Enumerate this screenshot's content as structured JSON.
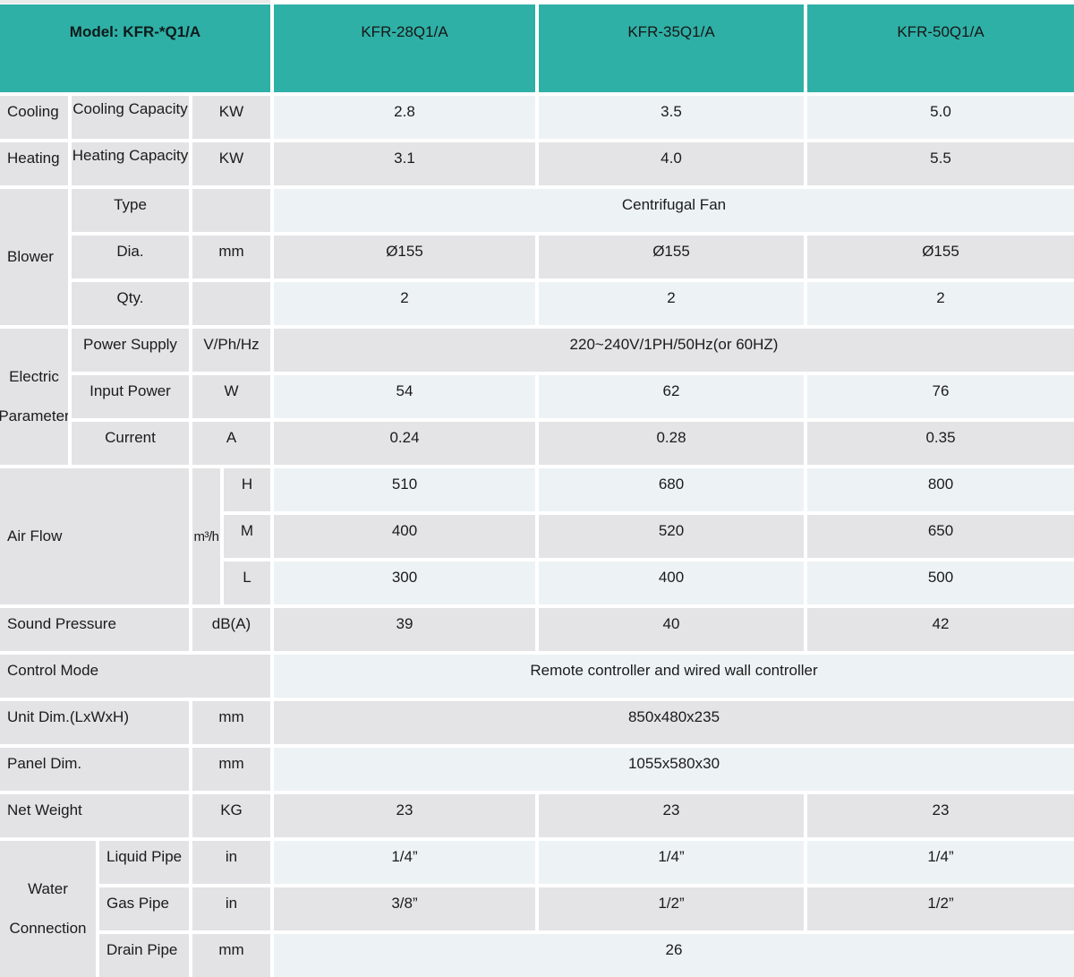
{
  "colors": {
    "header_teal": "#2FB0A6",
    "row_light": "#EDF2F5",
    "row_gray": "#E4E3E5",
    "label_gray": "#E3E3E5"
  },
  "header": {
    "model_label": "Model: KFR-*Q1/A",
    "columns": [
      "KFR-28Q1/A",
      "KFR-35Q1/A",
      "KFR-50Q1/A"
    ]
  },
  "rows": {
    "cooling": {
      "group": "Cooling",
      "label": "Cooling Capacity",
      "unit": "KW",
      "values": [
        "2.8",
        "3.5",
        "5.0"
      ]
    },
    "heating": {
      "group": "Heating",
      "label": "Heating Capacity",
      "unit": "KW",
      "values": [
        "3.1",
        "4.0",
        "5.5"
      ]
    },
    "blower": {
      "group": "Blower",
      "type": {
        "label": "Type",
        "unit": "",
        "span": "Centrifugal Fan"
      },
      "dia": {
        "label": "Dia.",
        "unit": "mm",
        "values": [
          "Ø155",
          "Ø155",
          "Ø155"
        ]
      },
      "qty": {
        "label": "Qty.",
        "unit": "",
        "values": [
          "2",
          "2",
          "2"
        ]
      }
    },
    "electric": {
      "group": "Electric Parameter",
      "power_supply": {
        "label": "Power Supply",
        "unit": "V/Ph/Hz",
        "span": "220~240V/1PH/50Hz(or 60HZ)"
      },
      "input_power": {
        "label": "Input Power",
        "unit": "W",
        "values": [
          "54",
          "62",
          "76"
        ]
      },
      "current": {
        "label": "Current",
        "unit": "A",
        "values": [
          "0.24",
          "0.28",
          "0.35"
        ]
      }
    },
    "airflow": {
      "group": "Air Flow",
      "unit": "m³/h",
      "h": {
        "label": "H",
        "values": [
          "510",
          "680",
          "800"
        ]
      },
      "m": {
        "label": "M",
        "values": [
          "400",
          "520",
          "650"
        ]
      },
      "l": {
        "label": "L",
        "values": [
          "300",
          "400",
          "500"
        ]
      }
    },
    "sound": {
      "group": "Sound Pressure",
      "unit": "dB(A)",
      "values": [
        "39",
        "40",
        "42"
      ]
    },
    "control": {
      "group": "Control Mode",
      "span": "Remote controller and wired wall controller"
    },
    "unit_dim": {
      "group": "Unit Dim.(LxWxH)",
      "unit": "mm",
      "span": "850x480x235"
    },
    "panel_dim": {
      "group": "Panel Dim.",
      "unit": "mm",
      "span": "1055x580x30"
    },
    "net_weight": {
      "group": "Net Weight",
      "unit": "KG",
      "values": [
        "23",
        "23",
        "23"
      ]
    },
    "water": {
      "group": "Water Connection",
      "liquid": {
        "label": "Liquid Pipe",
        "unit": "in",
        "values": [
          "1/4”",
          "1/4”",
          "1/4”"
        ]
      },
      "gas": {
        "label": "Gas Pipe",
        "unit": "in",
        "values": [
          "3/8”",
          "1/2”",
          "1/2”"
        ]
      },
      "drain": {
        "label": "Drain Pipe",
        "unit": "mm",
        "span": "26"
      }
    }
  }
}
